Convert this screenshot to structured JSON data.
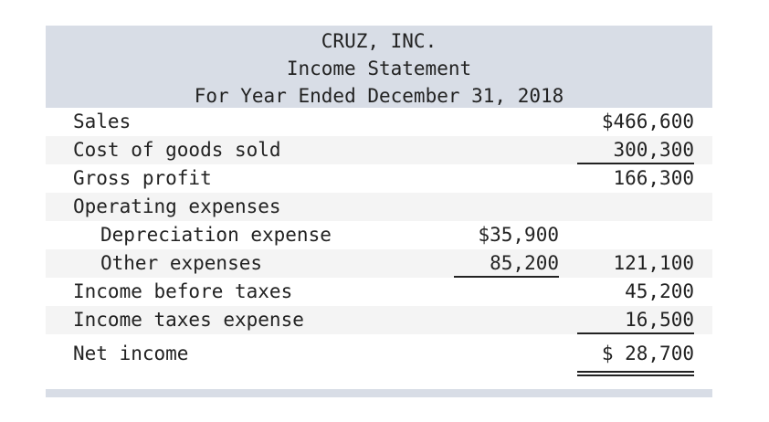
{
  "header": {
    "company": "CRUZ, INC.",
    "statement": "Income Statement",
    "period": "For Year Ended December 31, 2018"
  },
  "rows": {
    "sales": {
      "label": "Sales",
      "col2": "$466,600"
    },
    "cogs": {
      "label": "Cost of goods sold",
      "col2": "300,300"
    },
    "gross_profit": {
      "label": "Gross profit",
      "col2": "166,300"
    },
    "operating_expenses": {
      "label": "Operating expenses"
    },
    "depreciation": {
      "label": "Depreciation expense",
      "col1": "$35,900"
    },
    "other_expenses": {
      "label": "Other expenses",
      "col1": "85,200",
      "col2": "121,100"
    },
    "income_before_taxes": {
      "label": "Income before taxes",
      "col2": "45,200"
    },
    "income_taxes": {
      "label": "Income taxes expense",
      "col2": "16,500"
    },
    "net_income": {
      "label": "Net income",
      "col2": "$ 28,700"
    }
  }
}
